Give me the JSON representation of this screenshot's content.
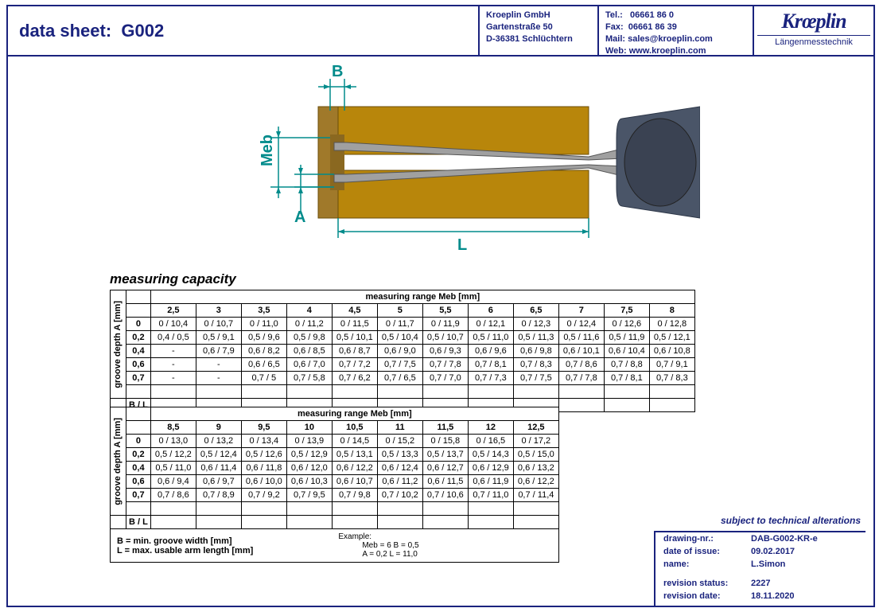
{
  "header": {
    "title_prefix": "data sheet:",
    "title_code": "G002",
    "company": "Kroeplin GmbH",
    "street": "Gartenstraße 50",
    "city": "D-36381 Schlüchtern",
    "tel_label": "Tel.:",
    "tel": "06661 86 0",
    "fax_label": "Fax:",
    "fax": "06661 86 39",
    "mail_label": "Mail:",
    "mail": "sales@kroeplin.com",
    "web_label": "Web:",
    "web": "www.kroeplin.com",
    "logo_main": "Krœplin",
    "logo_sub": "Längenmesstechnik"
  },
  "diagram": {
    "labels": {
      "B": "B",
      "Meb": "Meb",
      "A": "A",
      "L": "L"
    },
    "colors": {
      "dim": "#008b8b",
      "brass": "#b8860b",
      "brass_edge": "#6b4e0a",
      "caliper": "#a0a0a0",
      "handle": "#4a5568"
    }
  },
  "section_title": "measuring capacity",
  "table1": {
    "range_title": "measuring range Meb [mm]",
    "side_label": "groove depth A [mm]",
    "cols": [
      "2,5",
      "3",
      "3,5",
      "4",
      "4,5",
      "5",
      "5,5",
      "6",
      "6,5",
      "7",
      "7,5",
      "8"
    ],
    "row_heads": [
      "0",
      "0,2",
      "0,4",
      "0,6",
      "0,7"
    ],
    "bl_label": "B / L",
    "rows": [
      [
        "0 / 10,4",
        "0 / 10,7",
        "0 / 11,0",
        "0 / 11,2",
        "0 / 11,5",
        "0 / 11,7",
        "0 / 11,9",
        "0 / 12,1",
        "0 / 12,3",
        "0 / 12,4",
        "0 / 12,6",
        "0 / 12,8"
      ],
      [
        "0,4 / 0,5",
        "0,5 / 9,1",
        "0,5 / 9,6",
        "0,5 / 9,8",
        "0,5 / 10,1",
        "0,5 / 10,4",
        "0,5 / 10,7",
        "0,5 / 11,0",
        "0,5 / 11,3",
        "0,5 / 11,6",
        "0,5 / 11,9",
        "0,5 / 12,1"
      ],
      [
        "-",
        "0,6 / 7,9",
        "0,6 / 8,2",
        "0,6 / 8,5",
        "0,6 / 8,7",
        "0,6 / 9,0",
        "0,6 / 9,3",
        "0,6 / 9,6",
        "0,6 / 9,8",
        "0,6 / 10,1",
        "0,6 / 10,4",
        "0,6 / 10,8"
      ],
      [
        "-",
        "-",
        "0,6 / 6,5",
        "0,6 / 7,0",
        "0,7 / 7,2",
        "0,7 / 7,5",
        "0,7 / 7,8",
        "0,7 / 8,1",
        "0,7 / 8,3",
        "0,7 / 8,6",
        "0,7 / 8,8",
        "0,7 / 9,1"
      ],
      [
        "-",
        "-",
        "0,7 / 5",
        "0,7 / 5,8",
        "0,7 / 6,2",
        "0,7 / 6,5",
        "0,7 / 7,0",
        "0,7 / 7,3",
        "0,7 / 7,5",
        "0,7 / 7,8",
        "0,7 / 8,1",
        "0,7 / 8,3"
      ]
    ]
  },
  "table2": {
    "range_title": "measuring range Meb [mm]",
    "side_label": "groove depth A [mm]",
    "cols": [
      "8,5",
      "9",
      "9,5",
      "10",
      "10,5",
      "11",
      "11,5",
      "12",
      "12,5"
    ],
    "row_heads": [
      "0",
      "0,2",
      "0,4",
      "0,6",
      "0,7"
    ],
    "bl_label": "B / L",
    "rows": [
      [
        "0 / 13,0",
        "0 / 13,2",
        "0 / 13,4",
        "0 / 13,9",
        "0 / 14,5",
        "0 / 15,2",
        "0 / 15,8",
        "0 / 16,5",
        "0 / 17,2"
      ],
      [
        "0,5 / 12,2",
        "0,5 / 12,4",
        "0,5 / 12,6",
        "0,5 / 12,9",
        "0,5 / 13,1",
        "0,5 / 13,3",
        "0,5 / 13,7",
        "0,5 / 14,3",
        "0,5 / 15,0"
      ],
      [
        "0,5 / 11,0",
        "0,6 / 11,4",
        "0,6 / 11,8",
        "0,6 / 12,0",
        "0,6 / 12,2",
        "0,6 / 12,4",
        "0,6 / 12,7",
        "0,6 / 12,9",
        "0,6 / 13,2"
      ],
      [
        "0,6 / 9,4",
        "0,6 / 9,7",
        "0,6 / 10,0",
        "0,6 / 10,3",
        "0,6 / 10,7",
        "0,6 / 11,2",
        "0,6 / 11,5",
        "0,6 / 11,9",
        "0,6 / 12,2"
      ],
      [
        "0,7 / 8,6",
        "0,7 / 8,9",
        "0,7 / 9,2",
        "0,7 / 9,5",
        "0,7 / 9,8",
        "0,7 / 10,2",
        "0,7 / 10,6",
        "0,7 / 11,0",
        "0,7 / 11,4"
      ]
    ],
    "legend_B": "B = min. groove width [mm]",
    "legend_L": "L = max. usable arm length [mm]",
    "example_label": "Example:",
    "example_l1": "Meb = 6      B = 0,5",
    "example_l2": "A = 0,2     L = 11,0"
  },
  "subject": "subject to technical alterations",
  "footer": {
    "drawing_nr_k": "drawing-nr.:",
    "drawing_nr_v": "DAB-G002-KR-e",
    "date_issue_k": "date of issue:",
    "date_issue_v": "09.02.2017",
    "name_k": "name:",
    "name_v": "L.Simon",
    "rev_status_k": "revision status:",
    "rev_status_v": "2227",
    "rev_date_k": "revision date:",
    "rev_date_v": "18.11.2020"
  }
}
